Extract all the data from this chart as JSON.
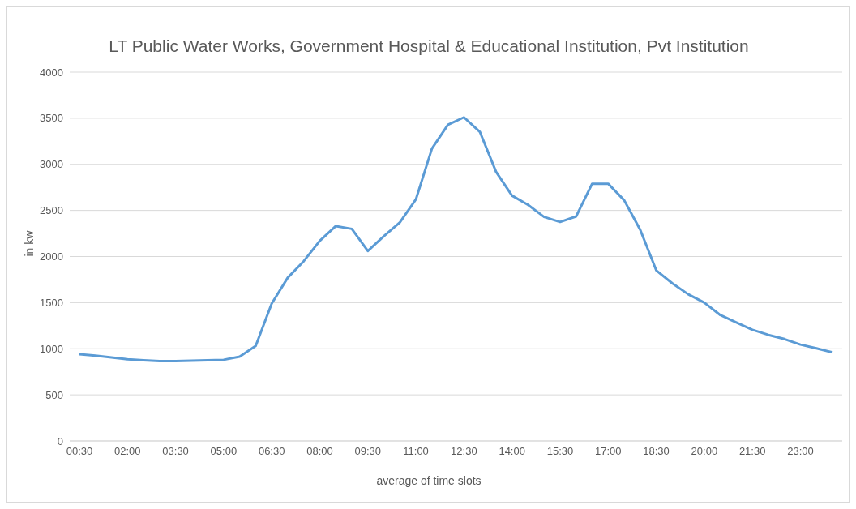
{
  "chart_data": {
    "type": "line",
    "title": "LT Public Water Works, Government Hospital & Educational Institution, Pvt Institution",
    "xlabel": "average of time slots",
    "ylabel": "in kw",
    "categories": [
      "00:30",
      null,
      null,
      "02:00",
      null,
      null,
      "03:30",
      null,
      null,
      "05:00",
      null,
      null,
      "06:30",
      null,
      null,
      "08:00",
      null,
      null,
      "09:30",
      null,
      null,
      "11:00",
      null,
      null,
      "12:30",
      null,
      null,
      "14:00",
      null,
      null,
      "15:30",
      null,
      null,
      "17:00",
      null,
      null,
      "18:30",
      null,
      null,
      "20:00",
      null,
      null,
      "21:30",
      null,
      null,
      "23:00",
      null,
      null
    ],
    "series": [
      {
        "color": "#5b9bd5",
        "values": [
          940,
          925,
          905,
          885,
          875,
          865,
          865,
          870,
          875,
          880,
          915,
          1030,
          1490,
          1770,
          1950,
          2170,
          2330,
          2300,
          2060,
          2220,
          2370,
          2620,
          3170,
          3430,
          3510,
          3350,
          2920,
          2660,
          2560,
          2430,
          2375,
          2435,
          2790,
          2790,
          2610,
          2290,
          1850,
          1710,
          1590,
          1500,
          1365,
          1285,
          1205,
          1150,
          1105,
          1045,
          1005,
          960
        ]
      }
    ],
    "ylim": [
      0,
      4000
    ],
    "yticks": [
      0,
      500,
      1000,
      1500,
      2000,
      2500,
      3000,
      3500,
      4000
    ],
    "grid": "y",
    "legend": false,
    "marker": "none",
    "line_style": "solid"
  }
}
